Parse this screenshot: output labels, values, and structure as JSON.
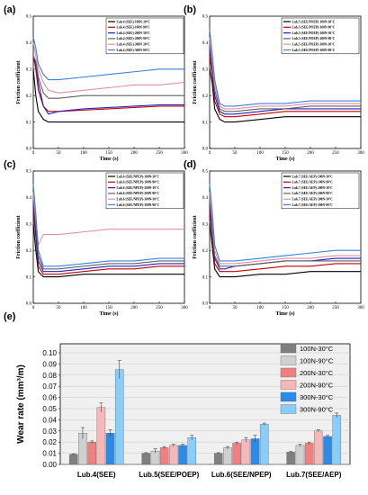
{
  "chart_data": [
    {
      "type": "line",
      "panel": "(a)",
      "xlabel": "Time (s)",
      "ylabel": "Friction coefficient",
      "xlim": [
        0,
        300
      ],
      "ylim": [
        0,
        0.5
      ],
      "xticks": [
        "0",
        "50",
        "100",
        "150",
        "200",
        "250",
        "300"
      ],
      "yticks": [
        "0.0",
        "0.1",
        "0.2",
        "0.3",
        "0.4",
        "0.5"
      ],
      "legend_position": "top-right",
      "series": [
        {
          "name": "Lub.4 (SEE)-100N-30°C",
          "color": "#000000",
          "x": [
            0,
            5,
            10,
            20,
            30,
            50,
            100,
            150,
            200,
            250,
            300
          ],
          "y": [
            0.3,
            0.2,
            0.14,
            0.11,
            0.1,
            0.1,
            0.1,
            0.1,
            0.1,
            0.1,
            0.1
          ]
        },
        {
          "name": "Lub.4 (SEE)-100N-90°C",
          "color": "#c00000",
          "x": [
            0,
            5,
            10,
            20,
            30,
            50,
            100,
            150,
            200,
            250,
            300
          ],
          "y": [
            0.35,
            0.3,
            0.22,
            0.16,
            0.14,
            0.14,
            0.145,
            0.15,
            0.155,
            0.16,
            0.16
          ]
        },
        {
          "name": "Lub.4 (SEE)-200N-30°C",
          "color": "#2020c0",
          "x": [
            0,
            5,
            10,
            20,
            30,
            50,
            100,
            150,
            200,
            250,
            300
          ],
          "y": [
            0.35,
            0.32,
            0.25,
            0.16,
            0.13,
            0.14,
            0.15,
            0.155,
            0.16,
            0.165,
            0.165
          ]
        },
        {
          "name": "Lub.4 (SEE)-200N-90°C",
          "color": "#606060",
          "x": [
            0,
            5,
            10,
            20,
            30,
            50,
            100,
            150,
            200,
            250,
            300
          ],
          "y": [
            0.35,
            0.33,
            0.27,
            0.21,
            0.19,
            0.19,
            0.2,
            0.2,
            0.2,
            0.2,
            0.2
          ]
        },
        {
          "name": "Lub.4 (SEE)-300N-30°C",
          "color": "#e090a0",
          "x": [
            0,
            5,
            10,
            20,
            30,
            50,
            100,
            150,
            200,
            250,
            300
          ],
          "y": [
            0.4,
            0.35,
            0.3,
            0.25,
            0.22,
            0.21,
            0.22,
            0.23,
            0.24,
            0.24,
            0.25
          ]
        },
        {
          "name": "Lub.4 (SEE)-300N-90°C",
          "color": "#3a80e0",
          "x": [
            0,
            5,
            10,
            20,
            30,
            50,
            100,
            150,
            200,
            250,
            300
          ],
          "y": [
            0.42,
            0.38,
            0.32,
            0.28,
            0.26,
            0.26,
            0.27,
            0.28,
            0.29,
            0.3,
            0.3
          ]
        }
      ]
    },
    {
      "type": "line",
      "panel": "(b)",
      "xlabel": "Time (s)",
      "ylabel": "Friction coefficient",
      "xlim": [
        0,
        300
      ],
      "ylim": [
        0,
        0.5
      ],
      "xticks": [
        "0",
        "50",
        "100",
        "150",
        "200",
        "250",
        "300"
      ],
      "yticks": [
        "0.0",
        "0.1",
        "0.2",
        "0.3",
        "0.4",
        "0.5"
      ],
      "legend_position": "top-right",
      "series": [
        {
          "name": "Lub.5 (SEE/POEP)-100N-30°C",
          "color": "#000000",
          "x": [
            0,
            5,
            10,
            20,
            30,
            50,
            100,
            150,
            200,
            250,
            300
          ],
          "y": [
            0.3,
            0.25,
            0.15,
            0.11,
            0.1,
            0.1,
            0.11,
            0.12,
            0.12,
            0.12,
            0.12
          ]
        },
        {
          "name": "Lub.5 (SEE/POEP)-100N-90°C",
          "color": "#c00000",
          "x": [
            0,
            5,
            10,
            20,
            30,
            50,
            100,
            150,
            200,
            250,
            300
          ],
          "y": [
            0.35,
            0.28,
            0.18,
            0.13,
            0.12,
            0.12,
            0.13,
            0.14,
            0.14,
            0.14,
            0.14
          ]
        },
        {
          "name": "Lub.5 (SEE/POEP)-200N-30°C",
          "color": "#2020c0",
          "x": [
            0,
            5,
            10,
            20,
            30,
            50,
            100,
            150,
            200,
            250,
            300
          ],
          "y": [
            0.38,
            0.3,
            0.2,
            0.14,
            0.13,
            0.13,
            0.14,
            0.15,
            0.15,
            0.15,
            0.15
          ]
        },
        {
          "name": "Lub.5 (SEE/POEP)-200N-90°C",
          "color": "#606060",
          "x": [
            0,
            5,
            10,
            20,
            30,
            50,
            100,
            150,
            200,
            250,
            300
          ],
          "y": [
            0.4,
            0.32,
            0.22,
            0.15,
            0.14,
            0.14,
            0.15,
            0.15,
            0.16,
            0.16,
            0.16
          ]
        },
        {
          "name": "Lub.5 (SEE/POEP)-300N-30°C",
          "color": "#e090a0",
          "x": [
            0,
            5,
            10,
            20,
            30,
            50,
            100,
            150,
            200,
            250,
            300
          ],
          "y": [
            0.42,
            0.33,
            0.24,
            0.16,
            0.15,
            0.15,
            0.16,
            0.16,
            0.17,
            0.17,
            0.17
          ]
        },
        {
          "name": "Lub.5 (SEE/POEP)-300N-90°C",
          "color": "#3a80e0",
          "x": [
            0,
            5,
            10,
            20,
            30,
            50,
            100,
            150,
            200,
            250,
            300
          ],
          "y": [
            0.45,
            0.36,
            0.26,
            0.17,
            0.16,
            0.16,
            0.17,
            0.17,
            0.18,
            0.18,
            0.18
          ]
        }
      ]
    },
    {
      "type": "line",
      "panel": "(c)",
      "xlabel": "Time (s)",
      "ylabel": "Friction coefficient",
      "xlim": [
        0,
        300
      ],
      "ylim": [
        0,
        0.5
      ],
      "xticks": [
        "0",
        "50",
        "100",
        "150",
        "200",
        "250",
        "300"
      ],
      "yticks": [
        "0.0",
        "0.1",
        "0.2",
        "0.3",
        "0.4",
        "0.5"
      ],
      "legend_position": "top-right",
      "series": [
        {
          "name": "Lub.6 (SEE/NPEP)-100N-30°C",
          "color": "#000000",
          "x": [
            0,
            5,
            10,
            20,
            30,
            50,
            100,
            150,
            200,
            250,
            300
          ],
          "y": [
            0.3,
            0.2,
            0.12,
            0.1,
            0.1,
            0.1,
            0.11,
            0.11,
            0.11,
            0.11,
            0.11
          ]
        },
        {
          "name": "Lub.6 (SEE/NPEP)-100N-90°C",
          "color": "#c00000",
          "x": [
            0,
            5,
            10,
            20,
            30,
            50,
            100,
            150,
            200,
            250,
            300
          ],
          "y": [
            0.35,
            0.25,
            0.14,
            0.11,
            0.11,
            0.11,
            0.12,
            0.13,
            0.13,
            0.14,
            0.14
          ]
        },
        {
          "name": "Lub.6 (SEE/NPEP)-200N-30°C",
          "color": "#2020c0",
          "x": [
            0,
            5,
            10,
            20,
            30,
            50,
            100,
            150,
            200,
            250,
            300
          ],
          "y": [
            0.38,
            0.27,
            0.16,
            0.12,
            0.12,
            0.12,
            0.13,
            0.14,
            0.14,
            0.15,
            0.15
          ]
        },
        {
          "name": "Lub.6 (SEE/NPEP)-200N-90°C",
          "color": "#606060",
          "x": [
            0,
            5,
            10,
            20,
            30,
            50,
            100,
            150,
            200,
            250,
            300
          ],
          "y": [
            0.4,
            0.3,
            0.18,
            0.13,
            0.13,
            0.13,
            0.14,
            0.15,
            0.15,
            0.16,
            0.16
          ]
        },
        {
          "name": "Lub.6 (SEE/NPEP)-300N-30°C",
          "color": "#e090a0",
          "x": [
            0,
            5,
            10,
            20,
            30,
            50,
            100,
            150,
            200,
            250,
            300
          ],
          "y": [
            0.42,
            0.32,
            0.22,
            0.26,
            0.26,
            0.26,
            0.27,
            0.28,
            0.28,
            0.28,
            0.28
          ]
        },
        {
          "name": "Lub.6 (SEE/NPEP)-300N-90°C",
          "color": "#3a80e0",
          "x": [
            0,
            5,
            10,
            20,
            30,
            50,
            100,
            150,
            200,
            250,
            300
          ],
          "y": [
            0.45,
            0.34,
            0.2,
            0.14,
            0.14,
            0.14,
            0.15,
            0.16,
            0.16,
            0.17,
            0.17
          ]
        }
      ]
    },
    {
      "type": "line",
      "panel": "(d)",
      "xlabel": "Time (s)",
      "ylabel": "Friction coefficient",
      "xlim": [
        0,
        300
      ],
      "ylim": [
        0,
        0.5
      ],
      "xticks": [
        "0",
        "50",
        "100",
        "150",
        "200",
        "250",
        "300"
      ],
      "yticks": [
        "0.0",
        "0.1",
        "0.2",
        "0.3",
        "0.4",
        "0.5"
      ],
      "legend_position": "top-right",
      "series": [
        {
          "name": "Lub.7 (SEE/AEP)-100N-30°C",
          "color": "#000000",
          "x": [
            0,
            5,
            10,
            20,
            30,
            50,
            100,
            150,
            200,
            250,
            300
          ],
          "y": [
            0.3,
            0.22,
            0.13,
            0.1,
            0.1,
            0.1,
            0.11,
            0.11,
            0.12,
            0.12,
            0.12
          ]
        },
        {
          "name": "Lub.7 (SEE/AEP)-100N-90°C",
          "color": "#c00000",
          "x": [
            0,
            5,
            10,
            20,
            30,
            50,
            100,
            150,
            200,
            250,
            300
          ],
          "y": [
            0.35,
            0.26,
            0.15,
            0.12,
            0.12,
            0.12,
            0.13,
            0.14,
            0.14,
            0.15,
            0.15
          ]
        },
        {
          "name": "Lub.7 (SEE/AEP)-200N-30°C",
          "color": "#2020c0",
          "x": [
            0,
            5,
            10,
            20,
            30,
            50,
            100,
            150,
            200,
            250,
            300
          ],
          "y": [
            0.38,
            0.28,
            0.17,
            0.13,
            0.13,
            0.14,
            0.15,
            0.16,
            0.16,
            0.17,
            0.17
          ]
        },
        {
          "name": "Lub.7 (SEE/AEP)-200N-90°C",
          "color": "#606060",
          "x": [
            0,
            5,
            10,
            20,
            30,
            50,
            100,
            150,
            200,
            250,
            300
          ],
          "y": [
            0.4,
            0.3,
            0.18,
            0.14,
            0.14,
            0.14,
            0.15,
            0.16,
            0.16,
            0.16,
            0.16
          ]
        },
        {
          "name": "Lub.7 (SEE/AEP)-300N-30°C",
          "color": "#e090a0",
          "x": [
            0,
            5,
            10,
            20,
            30,
            50,
            100,
            150,
            200,
            250,
            300
          ],
          "y": [
            0.42,
            0.32,
            0.2,
            0.15,
            0.15,
            0.15,
            0.16,
            0.17,
            0.17,
            0.18,
            0.18
          ]
        },
        {
          "name": "Lub.7 (SEE/AEP)-300N-90°C",
          "color": "#3a80e0",
          "x": [
            0,
            5,
            10,
            20,
            30,
            50,
            100,
            150,
            200,
            250,
            300
          ],
          "y": [
            0.45,
            0.35,
            0.22,
            0.16,
            0.16,
            0.16,
            0.17,
            0.18,
            0.19,
            0.2,
            0.2
          ]
        }
      ]
    },
    {
      "type": "bar",
      "panel": "(e)",
      "ylabel": "Wear rate  (mm³/m)",
      "ylim": [
        0,
        0.1
      ],
      "yticks": [
        "0.00",
        "0.01",
        "0.02",
        "0.03",
        "0.04",
        "0.05",
        "0.06",
        "0.07",
        "0.08",
        "0.09",
        "0.10"
      ],
      "categories": [
        "Lub.4(SEE)",
        "Lub.5(SEE/POEP)",
        "Lub.6(SEE/NPEP)",
        "Lub.7(SEE/AEP)"
      ],
      "legend_position": "top-right",
      "series": [
        {
          "name": "100N-30°C",
          "color": "#7f7f7f",
          "values": [
            0.009,
            0.01,
            0.01,
            0.011
          ],
          "errors": [
            0.0005,
            0.0005,
            0.0005,
            0.0005
          ]
        },
        {
          "name": "100N-90°C",
          "color": "#d0d0d0",
          "values": [
            0.028,
            0.012,
            0.015,
            0.017
          ],
          "errors": [
            0.005,
            0.002,
            0.001,
            0.001
          ]
        },
        {
          "name": "200N-30°C",
          "color": "#f08080",
          "values": [
            0.02,
            0.015,
            0.019,
            0.019
          ],
          "errors": [
            0.001,
            0.001,
            0.001,
            0.001
          ]
        },
        {
          "name": "200N-90°C",
          "color": "#f4b8b8",
          "values": [
            0.051,
            0.017,
            0.022,
            0.03
          ],
          "errors": [
            0.004,
            0.001,
            0.002,
            0.001
          ]
        },
        {
          "name": "300N-30°C",
          "color": "#2a8be8",
          "values": [
            0.028,
            0.017,
            0.023,
            0.025
          ],
          "errors": [
            0.003,
            0.001,
            0.003,
            0.001
          ]
        },
        {
          "name": "300N-90°C",
          "color": "#87cefa",
          "values": [
            0.085,
            0.024,
            0.036,
            0.044
          ],
          "errors": [
            0.008,
            0.002,
            0.001,
            0.002
          ]
        }
      ]
    }
  ]
}
